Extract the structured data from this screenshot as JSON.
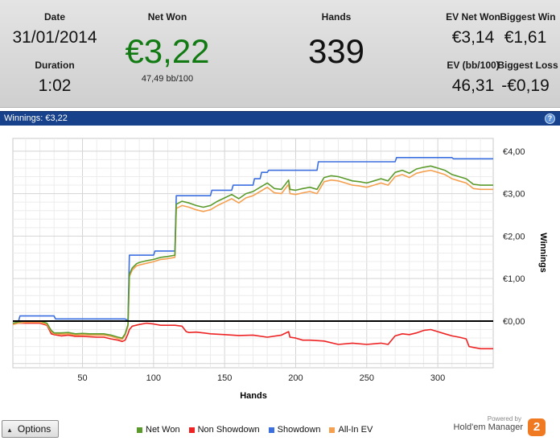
{
  "header": {
    "date_label": "Date",
    "date_value": "31/01/2014",
    "duration_label": "Duration",
    "duration_value": "1:02",
    "net_won_label": "Net Won",
    "net_won_value": "€3,22",
    "bb_per_100": "47,49 bb/100",
    "hands_label": "Hands",
    "hands_value": "339",
    "ev_net_won_label": "EV Net Won",
    "ev_net_won_value": "€3,14",
    "biggest_win_label": "Biggest Win",
    "biggest_win_value": "€1,61",
    "ev_bb100_label": "EV (bb/100)",
    "ev_bb100_value": "46,31",
    "biggest_loss_label": "Biggest Loss",
    "biggest_loss_value": "-€0,19"
  },
  "chart_title": {
    "label": "Winnings:",
    "value": "€3,22",
    "help_icon": "?"
  },
  "colors": {
    "net_won": "#5a9a2a",
    "non_showdown": "#ee2222",
    "showdown": "#3b6fe0",
    "allin_ev": "#f4a050",
    "zero_line": "#000000",
    "net_won_header": "#127a12",
    "title_bar": "#17418a"
  },
  "chart_data": {
    "type": "line",
    "xlabel": "Hands",
    "ylabel": "Winnings",
    "xlim": [
      1,
      339
    ],
    "ylim": [
      -1.1,
      4.3
    ],
    "x_ticks": [
      50,
      100,
      150,
      200,
      250,
      300
    ],
    "x_tick_labels": [
      "50",
      "100",
      "150",
      "200",
      "250",
      "300"
    ],
    "y_ticks": [
      0,
      1,
      2,
      3,
      4
    ],
    "y_tick_labels": [
      "€0,00",
      "€1,00",
      "€2,00",
      "€3,00",
      "€4,00"
    ],
    "grid": true,
    "legend_position": "bottom",
    "series": [
      {
        "name": "Net Won",
        "color_key": "net_won",
        "x": [
          1,
          5,
          10,
          20,
          25,
          28,
          30,
          35,
          40,
          45,
          50,
          55,
          60,
          65,
          70,
          75,
          78,
          80,
          82,
          83,
          85,
          88,
          90,
          95,
          100,
          105,
          110,
          115,
          116,
          120,
          125,
          130,
          135,
          140,
          145,
          150,
          155,
          160,
          165,
          170,
          175,
          180,
          185,
          190,
          195,
          196,
          200,
          205,
          210,
          215,
          220,
          225,
          230,
          235,
          240,
          245,
          250,
          255,
          260,
          265,
          270,
          275,
          280,
          285,
          290,
          295,
          300,
          305,
          310,
          315,
          320,
          325,
          330,
          339
        ],
        "y": [
          -0.05,
          -0.02,
          0.0,
          0.0,
          -0.05,
          -0.22,
          -0.28,
          -0.28,
          -0.27,
          -0.3,
          -0.29,
          -0.3,
          -0.3,
          -0.3,
          -0.33,
          -0.38,
          -0.4,
          -0.3,
          -0.08,
          1.1,
          1.25,
          1.35,
          1.38,
          1.42,
          1.45,
          1.5,
          1.52,
          1.55,
          2.75,
          2.82,
          2.78,
          2.72,
          2.68,
          2.72,
          2.82,
          2.9,
          2.98,
          2.88,
          3.0,
          3.05,
          3.15,
          3.25,
          3.12,
          3.1,
          3.32,
          3.1,
          3.08,
          3.12,
          3.15,
          3.1,
          3.38,
          3.42,
          3.4,
          3.35,
          3.3,
          3.28,
          3.25,
          3.3,
          3.35,
          3.3,
          3.5,
          3.55,
          3.48,
          3.58,
          3.62,
          3.65,
          3.6,
          3.55,
          3.45,
          3.4,
          3.35,
          3.22,
          3.2,
          3.2
        ]
      },
      {
        "name": "Non Showdown",
        "color_key": "non_showdown",
        "x": [
          1,
          5,
          10,
          20,
          25,
          28,
          30,
          35,
          40,
          45,
          50,
          55,
          60,
          65,
          70,
          75,
          78,
          80,
          82,
          83,
          85,
          90,
          95,
          100,
          105,
          110,
          115,
          120,
          123,
          125,
          130,
          135,
          140,
          150,
          160,
          170,
          180,
          190,
          195,
          196,
          200,
          205,
          210,
          220,
          230,
          240,
          250,
          260,
          265,
          270,
          275,
          280,
          285,
          290,
          295,
          300,
          305,
          310,
          315,
          320,
          322,
          325,
          330,
          339
        ],
        "y": [
          -0.05,
          -0.05,
          -0.05,
          -0.05,
          -0.1,
          -0.3,
          -0.32,
          -0.35,
          -0.33,
          -0.36,
          -0.36,
          -0.37,
          -0.38,
          -0.38,
          -0.42,
          -0.45,
          -0.48,
          -0.45,
          -0.3,
          -0.2,
          -0.12,
          -0.08,
          -0.05,
          -0.07,
          -0.1,
          -0.1,
          -0.1,
          -0.12,
          -0.25,
          -0.27,
          -0.26,
          -0.28,
          -0.3,
          -0.32,
          -0.34,
          -0.33,
          -0.38,
          -0.33,
          -0.25,
          -0.38,
          -0.4,
          -0.45,
          -0.45,
          -0.47,
          -0.55,
          -0.52,
          -0.55,
          -0.52,
          -0.55,
          -0.35,
          -0.3,
          -0.32,
          -0.28,
          -0.22,
          -0.2,
          -0.25,
          -0.3,
          -0.35,
          -0.38,
          -0.42,
          -0.6,
          -0.62,
          -0.65,
          -0.65
        ]
      },
      {
        "name": "Showdown",
        "color_key": "showdown",
        "x": [
          1,
          5,
          6,
          30,
          31,
          80,
          81,
          82,
          83,
          100,
          101,
          115,
          116,
          140,
          141,
          155,
          156,
          170,
          171,
          175,
          176,
          180,
          181,
          215,
          216,
          270,
          271,
          310,
          311,
          339
        ],
        "y": [
          0.0,
          0.0,
          0.12,
          0.12,
          0.05,
          0.05,
          0.03,
          0.03,
          1.55,
          1.55,
          1.65,
          1.65,
          2.95,
          2.95,
          3.08,
          3.08,
          3.2,
          3.2,
          3.35,
          3.35,
          3.5,
          3.5,
          3.55,
          3.55,
          3.75,
          3.75,
          3.85,
          3.85,
          3.82,
          3.82
        ]
      },
      {
        "name": "All-In EV",
        "color_key": "allin_ev",
        "x": [
          1,
          5,
          10,
          20,
          25,
          28,
          30,
          35,
          40,
          45,
          50,
          55,
          60,
          65,
          70,
          75,
          78,
          80,
          82,
          83,
          85,
          88,
          90,
          95,
          100,
          105,
          110,
          115,
          116,
          120,
          125,
          130,
          135,
          140,
          145,
          150,
          155,
          160,
          165,
          170,
          175,
          180,
          185,
          190,
          195,
          196,
          200,
          205,
          210,
          215,
          220,
          225,
          230,
          235,
          240,
          245,
          250,
          255,
          260,
          265,
          270,
          275,
          280,
          285,
          290,
          295,
          300,
          305,
          310,
          315,
          320,
          325,
          330,
          339
        ],
        "y": [
          -0.08,
          -0.05,
          -0.03,
          -0.03,
          -0.08,
          -0.25,
          -0.3,
          -0.31,
          -0.3,
          -0.33,
          -0.32,
          -0.33,
          -0.33,
          -0.33,
          -0.36,
          -0.41,
          -0.43,
          -0.33,
          -0.12,
          1.05,
          1.2,
          1.3,
          1.32,
          1.36,
          1.4,
          1.45,
          1.47,
          1.5,
          2.65,
          2.72,
          2.68,
          2.62,
          2.58,
          2.62,
          2.72,
          2.8,
          2.88,
          2.78,
          2.9,
          2.95,
          3.05,
          3.15,
          3.02,
          3.0,
          3.22,
          3.0,
          2.98,
          3.02,
          3.05,
          3.0,
          3.28,
          3.32,
          3.3,
          3.25,
          3.2,
          3.18,
          3.15,
          3.2,
          3.25,
          3.2,
          3.4,
          3.45,
          3.38,
          3.48,
          3.52,
          3.55,
          3.5,
          3.45,
          3.35,
          3.3,
          3.25,
          3.12,
          3.1,
          3.1
        ]
      }
    ]
  },
  "footer": {
    "options_label": "Options",
    "options_icon": "triangle-up",
    "legend": [
      {
        "label": "Net Won",
        "color_key": "net_won"
      },
      {
        "label": "Non Showdown",
        "color_key": "non_showdown"
      },
      {
        "label": "Showdown",
        "color_key": "showdown"
      },
      {
        "label": "All-In EV",
        "color_key": "allin_ev"
      }
    ],
    "powered_by": "Powered by",
    "brand_name": "Hold'em Manager",
    "brand_logo": "2"
  }
}
